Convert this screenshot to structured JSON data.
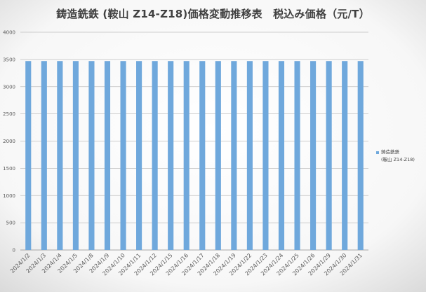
{
  "colors": {
    "bar": "#6fa8dc",
    "grid": "#bfbfbf",
    "axis_text": "#595959",
    "title_text": "#404040"
  },
  "chart_data": {
    "type": "bar",
    "title": "鋳造銑鉄 (鞍山 Z14-Z18)価格変動推移表　税込み価格（元/T）",
    "xlabel": "",
    "ylabel": "",
    "ylim": [
      0,
      4000
    ],
    "yticks": [
      0,
      500,
      1000,
      1500,
      2000,
      2500,
      3000,
      3500,
      4000
    ],
    "grid": true,
    "legend_position": "right",
    "categories": [
      "2024/1/2",
      "2024/1/3",
      "2024/1/4",
      "2024/1/5",
      "2024/1/8",
      "2024/1/9",
      "2024/1/10",
      "2024/1/11",
      "2024/1/12",
      "2024/1/15",
      "2024/1/16",
      "2024/1/17",
      "2024/1/18",
      "2024/1/19",
      "2024/1/22",
      "2024/1/23",
      "2024/1/24",
      "2024/1/25",
      "2024/1/26",
      "2024/1/29",
      "2024/1/30",
      "2024/1/31"
    ],
    "series": [
      {
        "name": "鋳造銑鉄(鞍山 Z14-Z18)",
        "legend_lines": [
          "鋳造銑鉄",
          "(鞍山 Z14-Z18)"
        ],
        "values": [
          3470,
          3470,
          3470,
          3470,
          3470,
          3470,
          3470,
          3470,
          3470,
          3470,
          3470,
          3470,
          3470,
          3470,
          3470,
          3470,
          3470,
          3470,
          3470,
          3470,
          3470,
          3470
        ]
      }
    ]
  }
}
